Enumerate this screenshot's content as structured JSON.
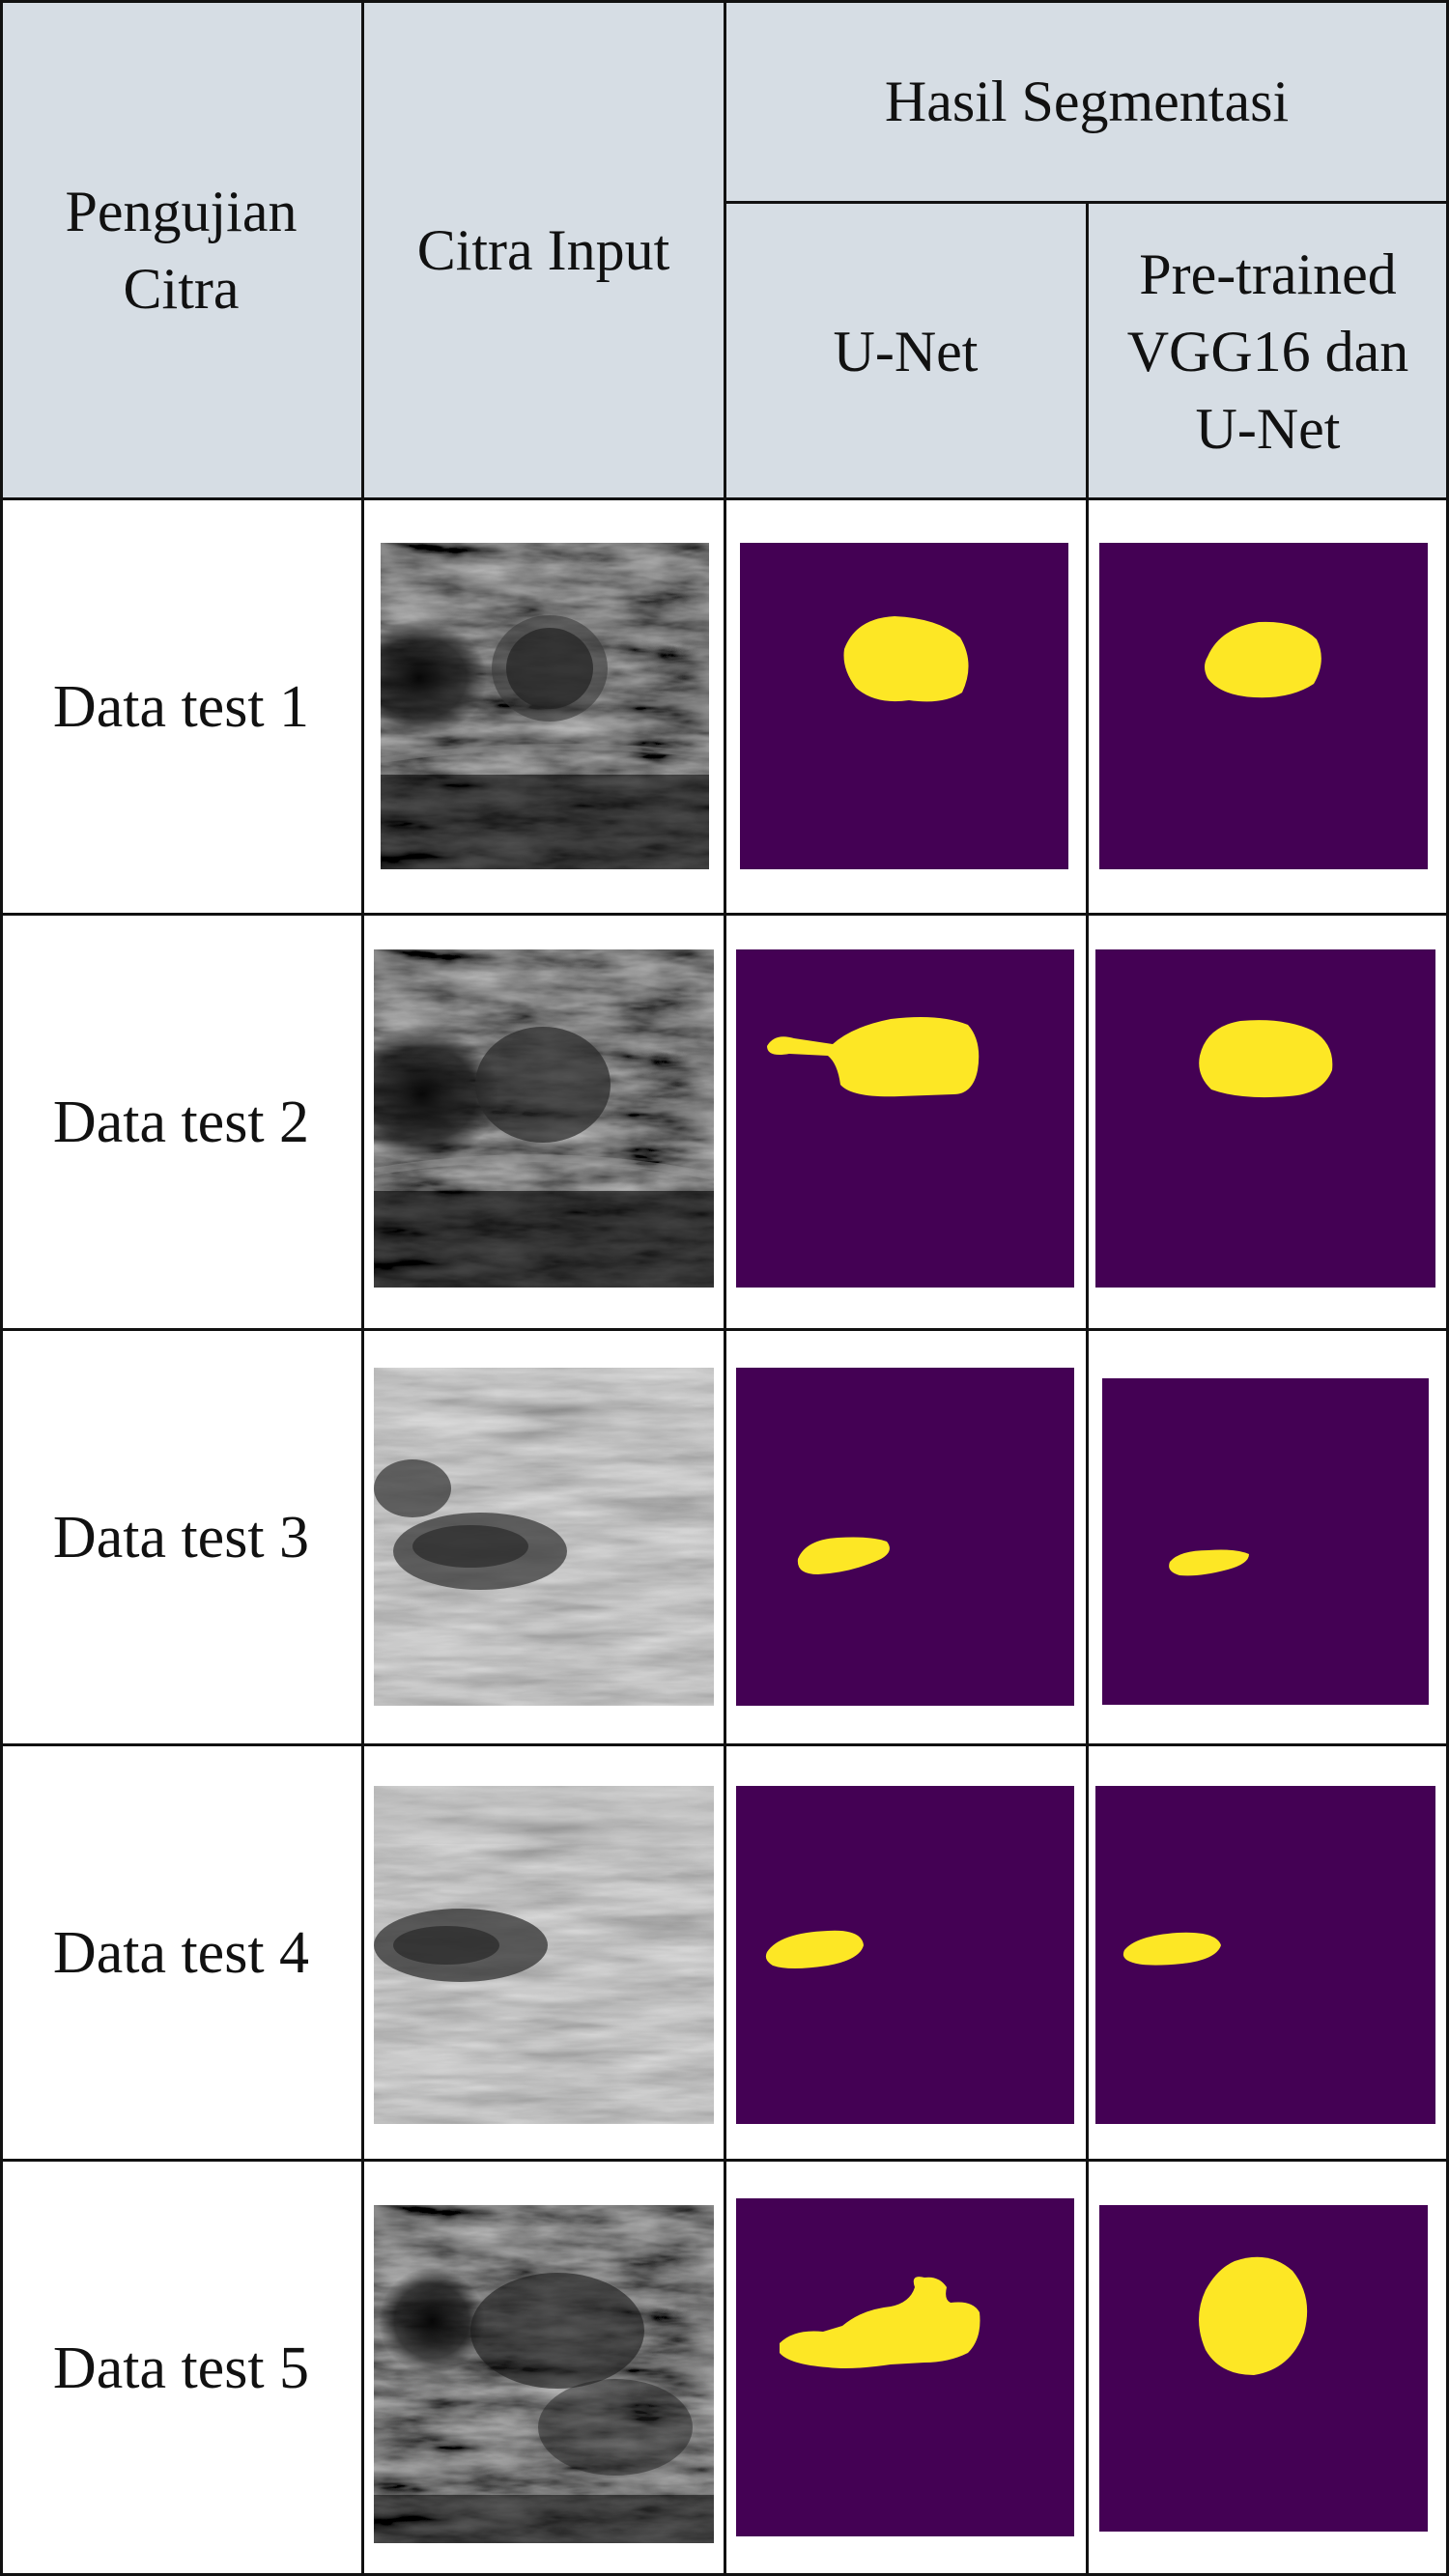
{
  "header": {
    "col1": "Pengujian Citra",
    "col2": "Citra Input",
    "group": "Hasil Segmentasi",
    "col3": "U-Net",
    "col4_line1": "Pre-trained",
    "col4_line2": "VGG16 dan",
    "col4_line3": "U-Net"
  },
  "rows": [
    {
      "label": "Data test 1"
    },
    {
      "label": "Data test 2"
    },
    {
      "label": "Data test 3"
    },
    {
      "label": "Data test 4"
    },
    {
      "label": "Data test 5"
    }
  ],
  "colors": {
    "header_bg": "#d6dde4",
    "mask_bg": "#440154",
    "mask_fg": "#fde725"
  }
}
